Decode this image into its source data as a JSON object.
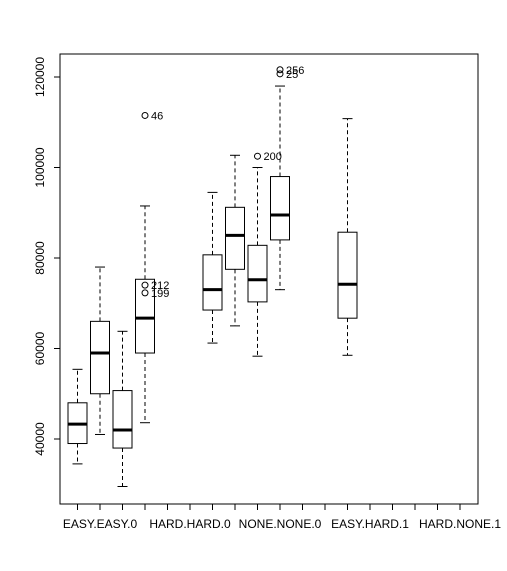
{
  "chart_data": {
    "type": "boxplot",
    "title": "",
    "xlabel": "",
    "ylabel": "",
    "ylim": [
      25000,
      125000
    ],
    "y_ticks": [
      40000,
      60000,
      80000,
      100000,
      120000
    ],
    "y_tick_labels": [
      "40000",
      "60000",
      "80000",
      "100000",
      "120000"
    ],
    "category_labels": [
      "EASY.EASY.0",
      "HARD.HARD.0",
      "NONE.NONE.0",
      "EASY.HARD.1",
      "HARD.NONE.1"
    ],
    "grid": false,
    "legend": "none",
    "boxes": [
      {
        "slot": 1,
        "whisker_low": 34500,
        "q1": 39000,
        "median": 43300,
        "q3": 48000,
        "whisker_high": 55400,
        "outliers": []
      },
      {
        "slot": 2,
        "whisker_low": 41000,
        "q1": 50000,
        "median": 59000,
        "q3": 66000,
        "whisker_high": 78000,
        "outliers": []
      },
      {
        "slot": 3,
        "whisker_low": 29500,
        "q1": 38000,
        "median": 42000,
        "q3": 50700,
        "whisker_high": 63800,
        "outliers": []
      },
      {
        "slot": 4,
        "whisker_low": 43600,
        "q1": 59000,
        "median": 66700,
        "q3": 75300,
        "whisker_high": 91500,
        "outliers": [
          {
            "value": 111500,
            "label": "46"
          },
          {
            "value": 74000,
            "label": "212"
          },
          {
            "value": 72300,
            "label": "199"
          }
        ]
      },
      {
        "slot": 7,
        "whisker_low": 61200,
        "q1": 68500,
        "median": 73000,
        "q3": 80700,
        "whisker_high": 94500,
        "outliers": []
      },
      {
        "slot": 8,
        "whisker_low": 65000,
        "q1": 77500,
        "median": 85000,
        "q3": 91200,
        "whisker_high": 102700,
        "outliers": []
      },
      {
        "slot": 9,
        "whisker_low": 58300,
        "q1": 70300,
        "median": 75200,
        "q3": 82800,
        "whisker_high": 100000,
        "outliers": [
          {
            "value": 102500,
            "label": "200"
          }
        ]
      },
      {
        "slot": 10,
        "whisker_low": 73000,
        "q1": 84000,
        "median": 89500,
        "q3": 98000,
        "whisker_high": 118000,
        "outliers": [
          {
            "value": 121600,
            "label": "256"
          },
          {
            "value": 120700,
            "label": "25"
          }
        ]
      },
      {
        "slot": 13,
        "whisker_low": 58500,
        "q1": 66700,
        "median": 74200,
        "q3": 85700,
        "whisker_high": 110800,
        "outliers": []
      }
    ]
  }
}
